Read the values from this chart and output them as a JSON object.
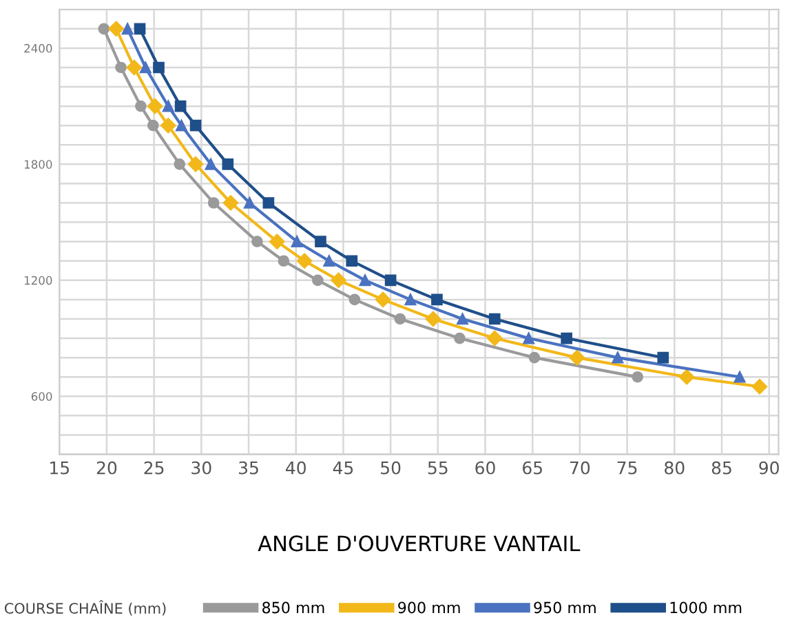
{
  "chart_data": {
    "type": "line",
    "xlabel": "ANGLE D'OUVERTURE VANTAIL",
    "legend_title": "COURSE CHAÎNE (mm)",
    "series": [
      {
        "name": "850 mm",
        "color": "#9a9a9a",
        "marker": "circle",
        "x": [
          19.7,
          21.5,
          23.6,
          24.9,
          27.7,
          31.3,
          35.9,
          38.7,
          42.3,
          46.2,
          51.0,
          57.3,
          65.2,
          76.1
        ],
        "values": [
          2500,
          2300,
          2100,
          2000,
          1800,
          1600,
          1400,
          1300,
          1200,
          1100,
          1000,
          900,
          800,
          700
        ]
      },
      {
        "name": "900 mm",
        "color": "#f2b81a",
        "marker": "diamond",
        "x": [
          21.0,
          22.9,
          25.1,
          26.5,
          29.4,
          33.1,
          38.0,
          40.9,
          44.5,
          49.2,
          54.5,
          61.0,
          69.7,
          81.3,
          89.0
        ],
        "values": [
          2500,
          2300,
          2100,
          2000,
          1800,
          1600,
          1400,
          1300,
          1200,
          1100,
          1000,
          900,
          800,
          700,
          650
        ]
      },
      {
        "name": "950 mm",
        "color": "#4a72c0",
        "marker": "triangle",
        "x": [
          22.2,
          24.1,
          26.5,
          27.9,
          31.0,
          35.1,
          40.1,
          43.5,
          47.3,
          52.1,
          57.6,
          64.6,
          74.0,
          86.9
        ],
        "values": [
          2500,
          2300,
          2100,
          2000,
          1800,
          1600,
          1400,
          1300,
          1200,
          1100,
          1000,
          900,
          800,
          700
        ]
      },
      {
        "name": "1000 mm",
        "color": "#1f4f8a",
        "marker": "square",
        "x": [
          23.5,
          25.5,
          27.8,
          29.4,
          32.8,
          37.1,
          42.6,
          45.9,
          50.0,
          54.9,
          61.0,
          68.6,
          78.8
        ],
        "values": [
          2500,
          2300,
          2100,
          2000,
          1800,
          1600,
          1400,
          1300,
          1200,
          1100,
          1000,
          900,
          800
        ]
      }
    ],
    "xlim": [
      15,
      91
    ],
    "xticks": [
      15,
      20,
      25,
      30,
      35,
      40,
      45,
      50,
      55,
      60,
      65,
      70,
      75,
      80,
      85,
      90
    ],
    "ylim": [
      300,
      2600
    ],
    "yticks": [
      {
        "value": 300,
        "label": null
      },
      {
        "value": 400,
        "label": null
      },
      {
        "value": 500,
        "label": null
      },
      600,
      {
        "value": 700,
        "label": null
      },
      {
        "value": 800,
        "label": null
      },
      {
        "value": 900,
        "label": null
      },
      {
        "value": 1000,
        "label": null
      },
      {
        "value": 1100,
        "label": null
      },
      1200,
      {
        "value": 1300,
        "label": null
      },
      {
        "value": 1400,
        "label": null
      },
      {
        "value": 1500,
        "label": null
      },
      {
        "value": 1600,
        "label": null
      },
      {
        "value": 1700,
        "label": null
      },
      1800,
      {
        "value": 1900,
        "label": null
      },
      {
        "value": 2000,
        "label": null
      },
      {
        "value": 2100,
        "label": null
      },
      {
        "value": 2200,
        "label": null
      },
      {
        "value": 2300,
        "label": null
      },
      2400,
      {
        "value": 2500,
        "label": null
      },
      {
        "value": 2600,
        "label": null
      }
    ],
    "grid": true,
    "legend": "bottom",
    "line_style": "solid"
  }
}
